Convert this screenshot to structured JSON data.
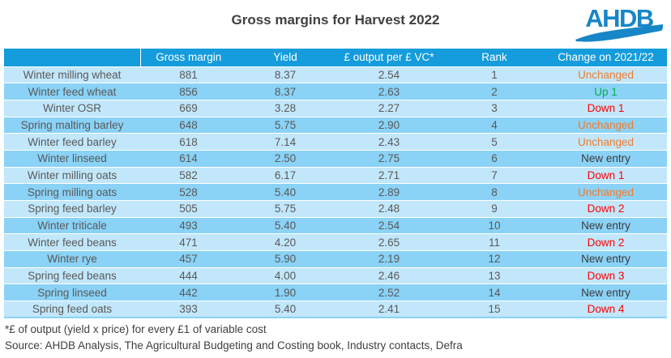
{
  "title": "Gross margins for Harvest 2022",
  "logo": {
    "text": "AHDB",
    "color": "#1786C7"
  },
  "colors": {
    "header_blue": "#149CDC",
    "row_light": "#C2E7FB",
    "row_dark": "#8AD2F6",
    "change_unchanged": "#ED7D31",
    "change_up": "#00B050",
    "change_down": "#FF0000",
    "change_new": "#3B3B3B",
    "body_text": "#595959",
    "heading_text": "#404040"
  },
  "chart_data": {
    "type": "table",
    "title": "Gross margins for Harvest 2022",
    "columns": [
      "",
      "Gross margin",
      "Yield",
      "£ output per £ VC*",
      "Rank",
      "Change on 2021/22"
    ],
    "rows": [
      {
        "crop": "Winter milling wheat",
        "gross_margin": "881",
        "yield": "8.37",
        "output_per_vc": "2.54",
        "rank": "1",
        "change": "Unchanged",
        "change_type": "unchanged"
      },
      {
        "crop": "Winter feed wheat",
        "gross_margin": "856",
        "yield": "8.37",
        "output_per_vc": "2.63",
        "rank": "2",
        "change": "Up 1",
        "change_type": "up"
      },
      {
        "crop": "Winter OSR",
        "gross_margin": "669",
        "yield": "3.28",
        "output_per_vc": "2.27",
        "rank": "3",
        "change": "Down 1",
        "change_type": "down"
      },
      {
        "crop": "Spring malting barley",
        "gross_margin": "648",
        "yield": "5.75",
        "output_per_vc": "2.90",
        "rank": "4",
        "change": "Unchanged",
        "change_type": "unchanged"
      },
      {
        "crop": "Winter feed barley",
        "gross_margin": "618",
        "yield": "7.14",
        "output_per_vc": "2.43",
        "rank": "5",
        "change": "Unchanged",
        "change_type": "unchanged"
      },
      {
        "crop": "Winter linseed",
        "gross_margin": "614",
        "yield": "2.50",
        "output_per_vc": "2.75",
        "rank": "6",
        "change": "New entry",
        "change_type": "new"
      },
      {
        "crop": "Winter milling oats",
        "gross_margin": "582",
        "yield": "6.17",
        "output_per_vc": "2.71",
        "rank": "7",
        "change": "Down 1",
        "change_type": "down"
      },
      {
        "crop": "Spring milling oats",
        "gross_margin": "528",
        "yield": "5.40",
        "output_per_vc": "2.89",
        "rank": "8",
        "change": "Unchanged",
        "change_type": "unchanged"
      },
      {
        "crop": "Spring feed barley",
        "gross_margin": "505",
        "yield": "5.75",
        "output_per_vc": "2.48",
        "rank": "9",
        "change": "Down 2",
        "change_type": "down"
      },
      {
        "crop": "Winter triticale",
        "gross_margin": "493",
        "yield": "5.40",
        "output_per_vc": "2.54",
        "rank": "10",
        "change": "New entry",
        "change_type": "new"
      },
      {
        "crop": "Winter feed beans",
        "gross_margin": "471",
        "yield": "4.20",
        "output_per_vc": "2.65",
        "rank": "11",
        "change": "Down 2",
        "change_type": "down"
      },
      {
        "crop": "Winter rye",
        "gross_margin": "457",
        "yield": "5.90",
        "output_per_vc": "2.19",
        "rank": "12",
        "change": "New entry",
        "change_type": "new"
      },
      {
        "crop": "Spring feed beans",
        "gross_margin": "444",
        "yield": "4.00",
        "output_per_vc": "2.46",
        "rank": "13",
        "change": "Down 3",
        "change_type": "down"
      },
      {
        "crop": "Spring linseed",
        "gross_margin": "442",
        "yield": "1.90",
        "output_per_vc": "2.52",
        "rank": "14",
        "change": "New entry",
        "change_type": "new"
      },
      {
        "crop": "Spring feed oats",
        "gross_margin": "393",
        "yield": "5.40",
        "output_per_vc": "2.41",
        "rank": "15",
        "change": "Down 4",
        "change_type": "down"
      }
    ]
  },
  "footnotes": {
    "line1": "*£ of output (yield x price) for every £1 of variable cost",
    "line2": "Source: AHDB Analysis, The Agricultural Budgeting and Costing book, Industry contacts, Defra"
  }
}
